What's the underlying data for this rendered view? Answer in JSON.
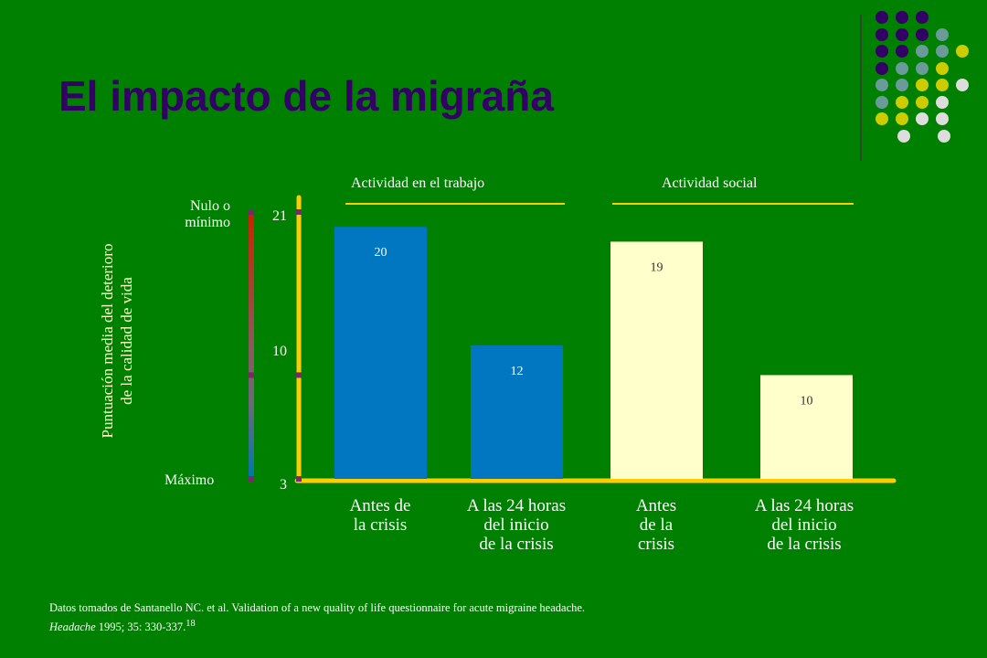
{
  "title": "El impacto de la migraña",
  "colors": {
    "background": "#008000",
    "title": "#330066",
    "axis": "#ffcc00",
    "bar_work": "#0077c0",
    "bar_social": "#ffffcc",
    "label_on_work": "#ffffff",
    "label_on_social": "#333333",
    "tick_mark": "#7a2a6a"
  },
  "decor": {
    "dot_colors": [
      "#330066",
      "#6a9a9a",
      "#cccc00",
      "#dddddd"
    ]
  },
  "chart_data": {
    "type": "bar",
    "ylabel_lines": [
      "Puntuación media del deterioro",
      "de la calidad de vida"
    ],
    "scale_top_label": "Nulo o mínimo",
    "scale_bottom_label": "Máximo",
    "yticks": [
      "21",
      "10",
      "3"
    ],
    "ylim": [
      3,
      21
    ],
    "groups": [
      {
        "label": "Actividad en el trabajo",
        "categories": [
          0,
          1
        ]
      },
      {
        "label": "Actividad social",
        "categories": [
          2,
          3
        ]
      }
    ],
    "categories": [
      [
        "Antes de",
        "la crisis"
      ],
      [
        "A las 24 horas",
        "del inicio",
        "de la crisis"
      ],
      [
        "Antes",
        "de la",
        "crisis"
      ],
      [
        "A las 24 horas",
        "del inicio",
        "de la crisis"
      ]
    ],
    "values": [
      20,
      12,
      19,
      10
    ],
    "data_labels": [
      "20",
      "12",
      "19",
      "10"
    ]
  },
  "source": {
    "line1": "Datos tomados de Santanello NC. et al. Validation of a new quality of life questionnaire for acute migraine headache.",
    "journal": "Headache",
    "rest": " 1995; 35: 330-337.",
    "ref": "18"
  }
}
